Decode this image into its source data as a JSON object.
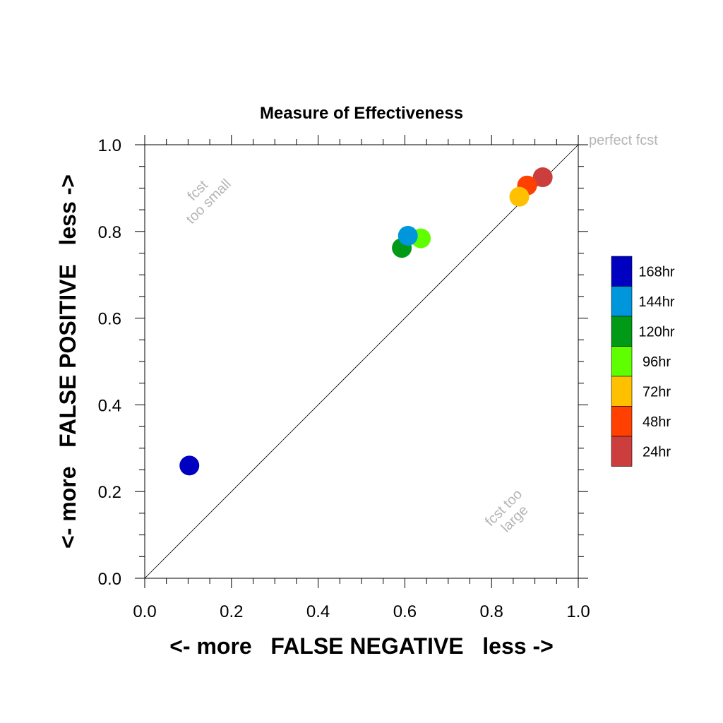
{
  "chart_data": {
    "type": "scatter",
    "title": "Measure of Effectiveness",
    "xlabel": "<- more   FALSE NEGATIVE   less ->",
    "ylabel": "<- more   FALSE POSITIVE   less ->",
    "xlim": [
      0,
      1
    ],
    "ylim": [
      0,
      1
    ],
    "x_ticks": [
      "0.0",
      "0.2",
      "0.4",
      "0.6",
      "0.8",
      "1.0"
    ],
    "y_ticks": [
      "0.0",
      "0.2",
      "0.4",
      "0.6",
      "0.8",
      "1.0"
    ],
    "diagonal_line": true,
    "grid": false,
    "legend_position": "right",
    "annotations": {
      "perfect": "perfect fcst",
      "small_line1": "fcst",
      "small_line2": "too small",
      "large_line1": "fcst too",
      "large_line2": "large"
    },
    "series": [
      {
        "name": "24hr",
        "color": "#cc3d3d",
        "x": 0.918,
        "y": 0.925
      },
      {
        "name": "48hr",
        "color": "#ff4000",
        "x": 0.882,
        "y": 0.906
      },
      {
        "name": "72hr",
        "color": "#ffc000",
        "x": 0.864,
        "y": 0.88
      },
      {
        "name": "96hr",
        "color": "#60ff00",
        "x": 0.637,
        "y": 0.784
      },
      {
        "name": "120hr",
        "color": "#009a17",
        "x": 0.593,
        "y": 0.762
      },
      {
        "name": "144hr",
        "color": "#0096dc",
        "x": 0.607,
        "y": 0.79
      },
      {
        "name": "168hr",
        "color": "#0000c0",
        "x": 0.103,
        "y": 0.26
      }
    ],
    "legend_order": [
      "168hr",
      "144hr",
      "120hr",
      "96hr",
      "72hr",
      "48hr",
      "24hr"
    ]
  }
}
